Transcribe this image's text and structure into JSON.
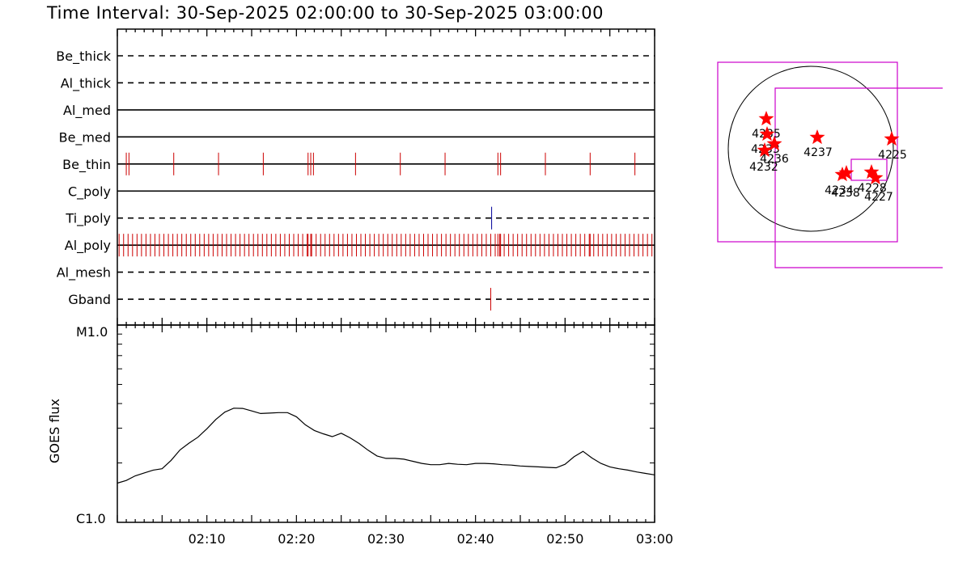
{
  "title": "Time Interval: 30-Sep-2025 02:00:00 to 30-Sep-2025 03:00:00",
  "chart_data": [
    {
      "type": "timeline",
      "x_range": [
        "02:00",
        "03:00"
      ],
      "channels": [
        {
          "name": "Be_thick",
          "style": "dashed",
          "events": []
        },
        {
          "name": "Al_thick",
          "style": "dashed",
          "events": []
        },
        {
          "name": "Al_med",
          "style": "solid",
          "events": []
        },
        {
          "name": "Be_med",
          "style": "solid",
          "events": []
        },
        {
          "name": "Be_thin",
          "style": "solid",
          "color": "#cc0000",
          "events": [
            1.0,
            1.3,
            6.3,
            11.3,
            16.3,
            21.3,
            21.6,
            21.9,
            26.6,
            31.6,
            36.6,
            42.5,
            42.8,
            47.8,
            52.8,
            57.8
          ]
        },
        {
          "name": "C_poly",
          "style": "solid",
          "events": []
        },
        {
          "name": "Ti_poly",
          "style": "dashed",
          "color": "#000099",
          "events": [
            41.8
          ]
        },
        {
          "name": "Al_poly",
          "style": "solid",
          "color": "#cc0000",
          "dense": true,
          "interval_min": 0.5,
          "extra_events": [
            21.3,
            21.6,
            42.5,
            42.8,
            52.8
          ]
        },
        {
          "name": "Al_mesh",
          "style": "dashed",
          "events": []
        },
        {
          "name": "Gband",
          "style": "dashed",
          "color": "#cc0000",
          "events": [
            41.7
          ]
        }
      ]
    },
    {
      "type": "line",
      "ylabel": "GOES flux",
      "yscale": "log",
      "ylim": [
        "C1.0",
        "M1.0"
      ],
      "y_tick_labels": [
        "M1.0",
        "C1.0"
      ],
      "x_tick_labels": [
        "02:10",
        "02:20",
        "02:30",
        "02:40",
        "02:50",
        "03:00"
      ],
      "x_minutes": [
        0,
        1,
        2,
        3,
        4,
        5,
        6,
        7,
        8,
        9,
        10,
        11,
        12,
        13,
        14,
        15,
        16,
        17,
        18,
        19,
        20,
        21,
        22,
        23,
        24,
        25,
        26,
        27,
        28,
        29,
        30,
        31,
        32,
        33,
        34,
        35,
        36,
        37,
        38,
        39,
        40,
        41,
        42,
        43,
        44,
        45,
        46,
        47,
        48,
        49,
        50,
        51,
        52,
        53,
        54,
        55,
        56,
        57,
        58,
        59,
        60
      ],
      "series": [
        {
          "values": [
            1.58,
            1.63,
            1.72,
            1.78,
            1.84,
            1.87,
            2.06,
            2.33,
            2.52,
            2.7,
            2.98,
            3.32,
            3.62,
            3.79,
            3.78,
            3.67,
            3.56,
            3.58,
            3.6,
            3.6,
            3.43,
            3.12,
            2.92,
            2.81,
            2.72,
            2.83,
            2.68,
            2.51,
            2.32,
            2.17,
            2.11,
            2.11,
            2.09,
            2.04,
            1.99,
            1.96,
            1.96,
            1.99,
            1.97,
            1.96,
            1.99,
            1.99,
            1.98,
            1.96,
            1.95,
            1.93,
            1.92,
            1.91,
            1.9,
            1.89,
            1.97,
            2.15,
            2.29,
            2.12,
            1.99,
            1.91,
            1.87,
            1.84,
            1.8,
            1.77,
            1.74
          ]
        }
      ]
    }
  ],
  "map": {
    "regions": [
      {
        "label": "4235",
        "label_display": "4235"
      },
      {
        "label": "4233",
        "label_display": "4233"
      },
      {
        "label": "4236",
        "label_display": "4236"
      },
      {
        "label": "4232",
        "label_display": "4232"
      },
      {
        "label": "4237",
        "label_display": "4237"
      },
      {
        "label": "4225",
        "label_display": "4225"
      },
      {
        "label": "4234",
        "label_display": "4234"
      },
      {
        "label": "4238",
        "label_display": "4238"
      },
      {
        "label": "4228",
        "label_display": "4228"
      },
      {
        "label": "4227",
        "label_display": "4227"
      }
    ],
    "colors": {
      "star": "#ff0000",
      "box": "#cc00cc",
      "disk": "#000000"
    }
  }
}
